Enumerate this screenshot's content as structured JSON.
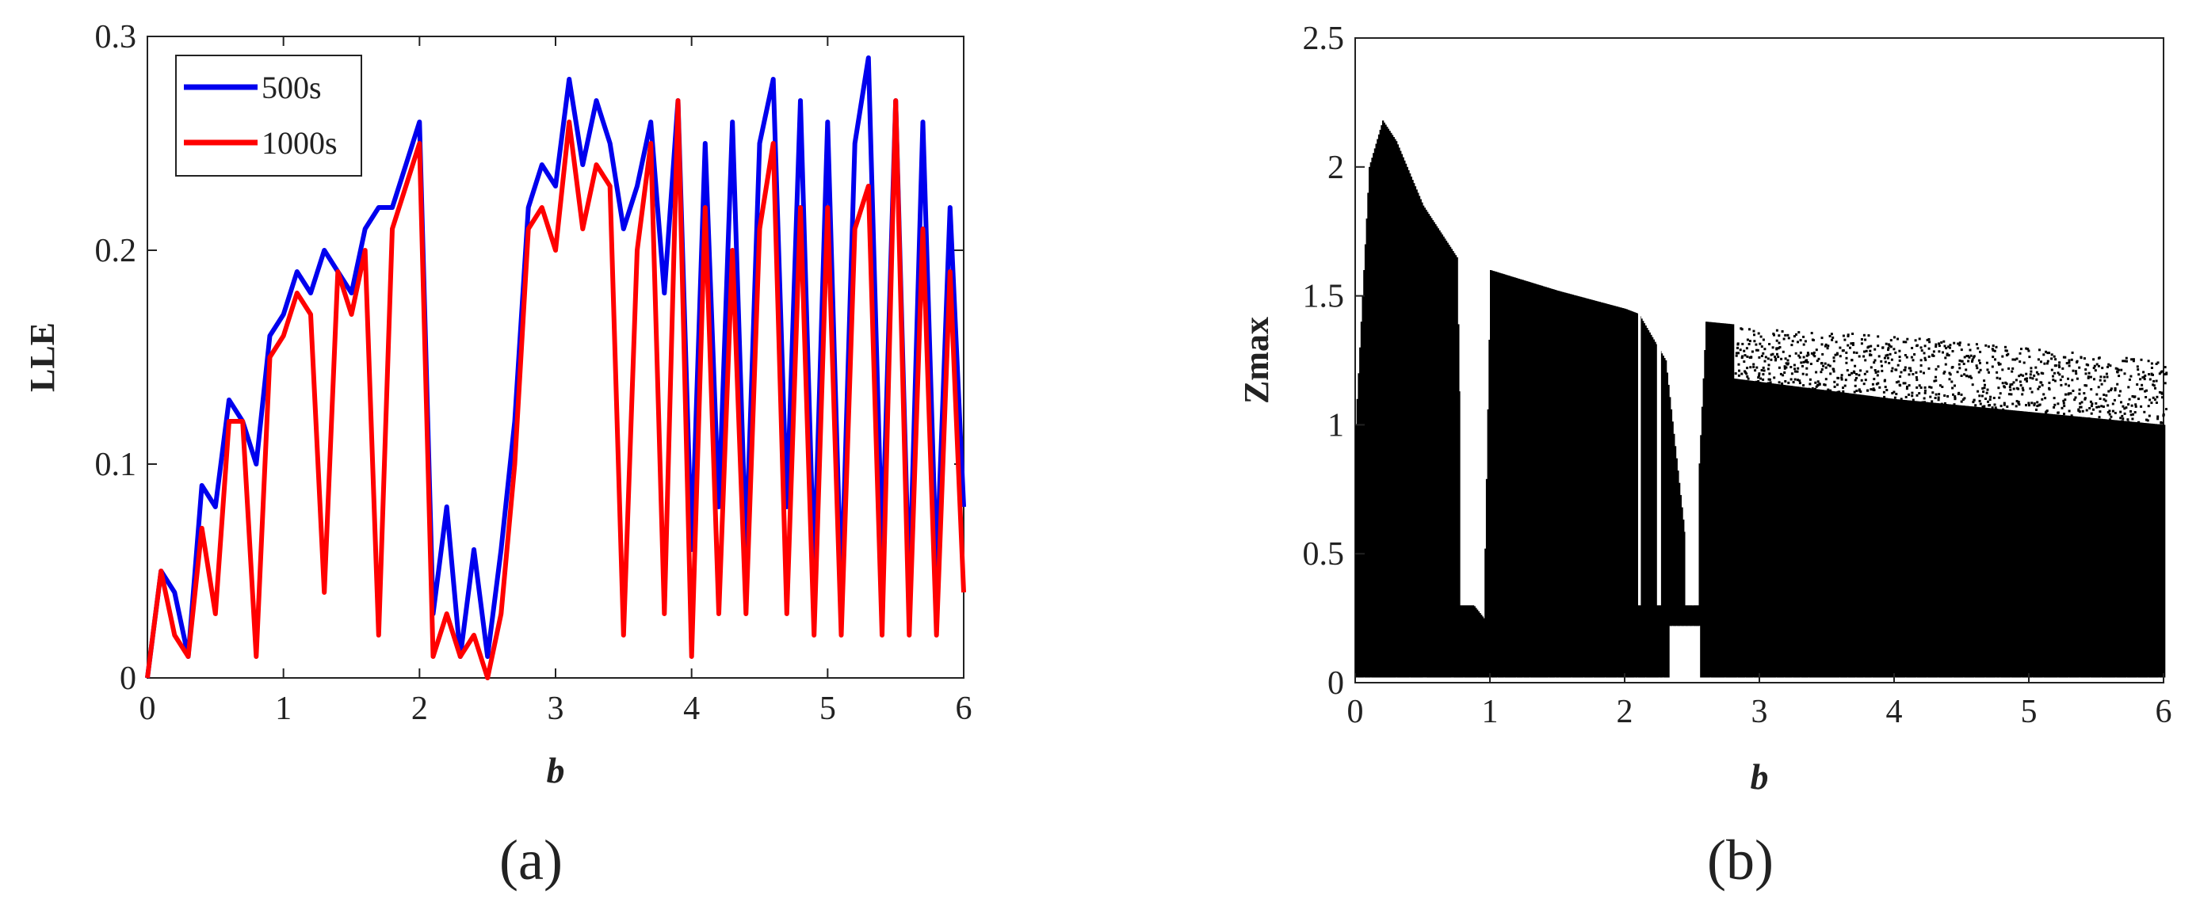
{
  "panels": {
    "a_label": "(a)",
    "b_label": "(b)"
  },
  "chart_data": [
    {
      "type": "line",
      "xlabel": "b",
      "ylabel": "LLE",
      "xlim": [
        0,
        6
      ],
      "ylim": [
        0,
        0.3
      ],
      "x_ticks": [
        "0",
        "1",
        "2",
        "3",
        "4",
        "5",
        "6"
      ],
      "y_ticks": [
        "0",
        "0.1",
        "0.2",
        "0.3"
      ],
      "legend_position": "top-left",
      "x": [
        0.0,
        0.1,
        0.2,
        0.3,
        0.4,
        0.5,
        0.6,
        0.7,
        0.8,
        0.9,
        1.0,
        1.1,
        1.2,
        1.3,
        1.4,
        1.5,
        1.6,
        1.7,
        1.8,
        1.9,
        2.0,
        2.1,
        2.2,
        2.3,
        2.4,
        2.5,
        2.6,
        2.7,
        2.8,
        2.9,
        3.0,
        3.1,
        3.2,
        3.3,
        3.4,
        3.5,
        3.6,
        3.7,
        3.8,
        3.9,
        4.0,
        4.1,
        4.2,
        4.3,
        4.4,
        4.5,
        4.6,
        4.7,
        4.8,
        4.9,
        5.0,
        5.1,
        5.2,
        5.3,
        5.4,
        5.5,
        5.6,
        5.7,
        5.8,
        5.9,
        6.0
      ],
      "series": [
        {
          "name": "500s",
          "color": "#0000ee",
          "values": [
            0.0,
            0.05,
            0.04,
            0.01,
            0.09,
            0.08,
            0.13,
            0.12,
            0.1,
            0.16,
            0.17,
            0.19,
            0.18,
            0.2,
            0.19,
            0.18,
            0.21,
            0.22,
            0.22,
            0.24,
            0.26,
            0.03,
            0.08,
            0.01,
            0.06,
            0.01,
            0.06,
            0.12,
            0.22,
            0.24,
            0.23,
            0.28,
            0.24,
            0.27,
            0.25,
            0.21,
            0.23,
            0.26,
            0.18,
            0.27,
            0.06,
            0.25,
            0.08,
            0.26,
            0.06,
            0.25,
            0.28,
            0.08,
            0.27,
            0.05,
            0.26,
            0.04,
            0.25,
            0.29,
            0.06,
            0.27,
            0.04,
            0.26,
            0.05,
            0.22,
            0.08
          ]
        },
        {
          "name": "1000s",
          "color": "#ff0000",
          "values": [
            0.0,
            0.05,
            0.02,
            0.01,
            0.07,
            0.03,
            0.12,
            0.12,
            0.01,
            0.15,
            0.16,
            0.18,
            0.17,
            0.04,
            0.19,
            0.17,
            0.2,
            0.02,
            0.21,
            0.23,
            0.25,
            0.01,
            0.03,
            0.01,
            0.02,
            0.0,
            0.03,
            0.1,
            0.21,
            0.22,
            0.2,
            0.26,
            0.21,
            0.24,
            0.23,
            0.02,
            0.2,
            0.25,
            0.03,
            0.27,
            0.01,
            0.22,
            0.03,
            0.2,
            0.03,
            0.21,
            0.25,
            0.03,
            0.22,
            0.02,
            0.22,
            0.02,
            0.21,
            0.23,
            0.02,
            0.27,
            0.02,
            0.21,
            0.02,
            0.19,
            0.04
          ]
        }
      ]
    },
    {
      "type": "scatter",
      "xlabel": "b",
      "ylabel": "Zmax",
      "xlim": [
        0,
        6
      ],
      "ylim": [
        0,
        2.5
      ],
      "x_ticks": [
        "0",
        "1",
        "2",
        "3",
        "4",
        "5",
        "6"
      ],
      "y_ticks": [
        "0",
        "0.5",
        "1",
        "1.5",
        "2",
        "2.5"
      ],
      "color": "#000000",
      "envelope_upper": [
        {
          "b": 0.0,
          "z": 1.0
        },
        {
          "b": 0.1,
          "z": 2.0
        },
        {
          "b": 0.2,
          "z": 2.18
        },
        {
          "b": 0.3,
          "z": 2.1
        },
        {
          "b": 0.5,
          "z": 1.85
        },
        {
          "b": 0.75,
          "z": 1.65
        },
        {
          "b": 0.8,
          "z": 0.35
        },
        {
          "b": 0.95,
          "z": 0.25
        },
        {
          "b": 1.0,
          "z": 1.6
        },
        {
          "b": 1.5,
          "z": 1.52
        },
        {
          "b": 2.0,
          "z": 1.45
        },
        {
          "b": 2.1,
          "z": 1.43
        },
        {
          "b": 2.3,
          "z": 1.25
        },
        {
          "b": 2.5,
          "z": 0.3
        },
        {
          "b": 2.6,
          "z": 1.4
        },
        {
          "b": 3.0,
          "z": 1.38
        },
        {
          "b": 4.0,
          "z": 1.35
        },
        {
          "b": 5.0,
          "z": 1.3
        },
        {
          "b": 6.0,
          "z": 1.25
        }
      ],
      "dense_band_upper": [
        {
          "b": 2.8,
          "z": 1.18
        },
        {
          "b": 4.0,
          "z": 1.1
        },
        {
          "b": 5.0,
          "z": 1.05
        },
        {
          "b": 6.0,
          "z": 1.0
        }
      ]
    }
  ]
}
